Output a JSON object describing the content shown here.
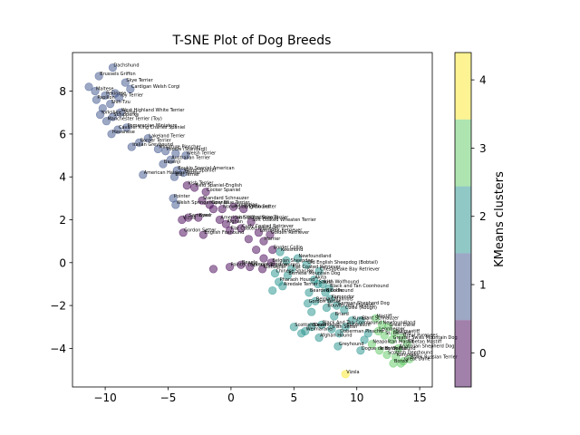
{
  "chart_data": {
    "type": "scatter",
    "title": "T-SNE Plot of Dog Breeds",
    "xlabel": "",
    "ylabel": "",
    "xlim": [
      -12.6,
      16.0
    ],
    "ylim": [
      -5.8,
      9.8
    ],
    "xticks": [
      -10,
      -5,
      0,
      5,
      10,
      15
    ],
    "yticks": [
      -4,
      -2,
      0,
      2,
      4,
      6,
      8
    ],
    "grid": false,
    "colorbar": {
      "label": "KMeans clusters",
      "ticks": [
        0,
        1,
        2,
        3,
        4
      ],
      "range": [
        -0.5,
        4.4
      ],
      "colors": [
        "#440154",
        "#3b528b",
        "#21918c",
        "#5ec962",
        "#fde725"
      ]
    },
    "points": [
      {
        "x": -9.4,
        "y": 9.1,
        "cluster": 1,
        "label": "Dachshund"
      },
      {
        "x": -10.5,
        "y": 8.7,
        "cluster": 1,
        "label": "Brussels Griffon"
      },
      {
        "x": -8.4,
        "y": 8.4,
        "cluster": 1,
        "label": "Skye Terrier"
      },
      {
        "x": -8.0,
        "y": 8.1,
        "cluster": 1,
        "label": "Cardigan Welsh Corgi"
      },
      {
        "x": -11.3,
        "y": 8.2,
        "cluster": 1,
        "label": ""
      },
      {
        "x": -10.8,
        "y": 8.0,
        "cluster": 1,
        "label": "Maltese"
      },
      {
        "x": -10.0,
        "y": 7.8,
        "cluster": 1,
        "label": "Pekinese"
      },
      {
        "x": -9.2,
        "y": 7.9,
        "cluster": 1,
        "label": ""
      },
      {
        "x": -8.9,
        "y": 7.7,
        "cluster": 1,
        "label": "Toy Terrier"
      },
      {
        "x": -10.7,
        "y": 7.6,
        "cluster": 1,
        "label": "Papillon"
      },
      {
        "x": -9.6,
        "y": 7.4,
        "cluster": 1,
        "label": "Shih-Tzu"
      },
      {
        "x": -10.2,
        "y": 7.2,
        "cluster": 1,
        "label": ""
      },
      {
        "x": -8.8,
        "y": 7.0,
        "cluster": 1,
        "label": "West Highland White Terrier"
      },
      {
        "x": -10.4,
        "y": 6.9,
        "cluster": 1,
        "label": "Yorkshire Terrier"
      },
      {
        "x": -9.4,
        "y": 6.8,
        "cluster": 1,
        "label": "Schipperke"
      },
      {
        "x": -9.9,
        "y": 6.6,
        "cluster": 1,
        "label": "Manchester Terrier (Toy)"
      },
      {
        "x": -8.3,
        "y": 6.3,
        "cluster": 1,
        "label": "Pomeranian Miniature"
      },
      {
        "x": -9.0,
        "y": 6.2,
        "cluster": 1,
        "label": "Cavalier King Charles Spaniel"
      },
      {
        "x": -9.5,
        "y": 6.0,
        "cluster": 1,
        "label": "Havanese"
      },
      {
        "x": -6.6,
        "y": 5.8,
        "cluster": 1,
        "label": "Lakeland Terrier"
      },
      {
        "x": -7.3,
        "y": 5.6,
        "cluster": 1,
        "label": "Border Terrier"
      },
      {
        "x": -7.9,
        "y": 5.4,
        "cluster": 1,
        "label": "Italian Greyhound"
      },
      {
        "x": -5.8,
        "y": 5.3,
        "cluster": 1,
        "label": "Miniature Pinscher"
      },
      {
        "x": -5.2,
        "y": 5.2,
        "cluster": 1,
        "label": "Poodle (Standard)"
      },
      {
        "x": -4.4,
        "y": 5.1,
        "cluster": 1,
        "label": ""
      },
      {
        "x": -3.6,
        "y": 5.0,
        "cluster": 1,
        "label": "Welsh Terrier"
      },
      {
        "x": -4.8,
        "y": 4.8,
        "cluster": 1,
        "label": "Australian Terrier"
      },
      {
        "x": -5.4,
        "y": 4.6,
        "cluster": 1,
        "label": "Basenji"
      },
      {
        "x": -4.3,
        "y": 4.3,
        "cluster": 1,
        "label": "Boykin Spaniel-American"
      },
      {
        "x": -3.8,
        "y": 4.2,
        "cluster": 1,
        "label": "Water Spaniel"
      },
      {
        "x": -4.5,
        "y": 4.0,
        "cluster": 1,
        "label": "Bull Terrier"
      },
      {
        "x": -7.0,
        "y": 4.1,
        "cluster": 1,
        "label": "American Hairless Terrier"
      },
      {
        "x": -3.5,
        "y": 3.6,
        "cluster": 0,
        "label": "Irish Terrier"
      },
      {
        "x": -2.9,
        "y": 3.5,
        "cluster": 0,
        "label": "Field Spaniel-English"
      },
      {
        "x": -2.0,
        "y": 3.3,
        "cluster": 0,
        "label": "Cocker Spaniel"
      },
      {
        "x": -4.6,
        "y": 3.0,
        "cluster": 1,
        "label": "Pointer"
      },
      {
        "x": -4.4,
        "y": 2.7,
        "cluster": 1,
        "label": "Welsh Springer Spaniel"
      },
      {
        "x": -2.3,
        "y": 2.9,
        "cluster": 0,
        "label": "Standard Schnauzer"
      },
      {
        "x": -1.7,
        "y": 2.7,
        "cluster": 0,
        "label": "Kerry Blue Terrier"
      },
      {
        "x": -1.4,
        "y": 2.5,
        "cluster": 0,
        "label": ""
      },
      {
        "x": -0.7,
        "y": 2.5,
        "cluster": 0,
        "label": "Norwegian Elkhound"
      },
      {
        "x": 0.2,
        "y": 2.6,
        "cluster": 0,
        "label": "Dalmatian"
      },
      {
        "x": 1.0,
        "y": 2.5,
        "cluster": 0,
        "label": "English Setter"
      },
      {
        "x": -3.4,
        "y": 2.1,
        "cluster": 0,
        "label": "Samoyed"
      },
      {
        "x": -3.9,
        "y": 2.0,
        "cluster": 0,
        "label": "Vizsla"
      },
      {
        "x": -2.6,
        "y": 2.1,
        "cluster": 0,
        "label": "Boxer"
      },
      {
        "x": -0.9,
        "y": 2.0,
        "cluster": 0,
        "label": "American Staffordshire Terrier"
      },
      {
        "x": -0.4,
        "y": 1.8,
        "cluster": 0,
        "label": "Afghan"
      },
      {
        "x": 0.3,
        "y": 2.0,
        "cluster": 0,
        "label": "Irish Water Spaniel"
      },
      {
        "x": 1.6,
        "y": 1.9,
        "cluster": 0,
        "label": "Soft Coated Wheaten Terrier"
      },
      {
        "x": 0.8,
        "y": 1.6,
        "cluster": 0,
        "label": "Curly Coated Retriever"
      },
      {
        "x": -0.1,
        "y": 1.5,
        "cluster": 0,
        "label": "Flat Coated Retriever"
      },
      {
        "x": 2.2,
        "y": 1.4,
        "cluster": 0,
        "label": "Labrador Retriever"
      },
      {
        "x": -3.8,
        "y": 1.4,
        "cluster": 0,
        "label": "Gordon Setter"
      },
      {
        "x": -2.2,
        "y": 1.3,
        "cluster": 0,
        "label": "English Foxhound"
      },
      {
        "x": 3.1,
        "y": 1.3,
        "cluster": 0,
        "label": "Golden Retriever"
      },
      {
        "x": 1.4,
        "y": 1.1,
        "cluster": 0,
        "label": ""
      },
      {
        "x": 2.6,
        "y": 1.0,
        "cluster": 0,
        "label": "Harrier"
      },
      {
        "x": 2.0,
        "y": 0.6,
        "cluster": 0,
        "label": ""
      },
      {
        "x": 3.3,
        "y": 0.6,
        "cluster": 0,
        "label": "Border Collie"
      },
      {
        "x": 3.9,
        "y": 0.5,
        "cluster": 2,
        "label": "Keeshond"
      },
      {
        "x": 2.6,
        "y": 0.2,
        "cluster": 0,
        "label": ""
      },
      {
        "x": 3.2,
        "y": 0.0,
        "cluster": 0,
        "label": "Belgian Sheepdog"
      },
      {
        "x": 4.4,
        "y": 0.1,
        "cluster": 2,
        "label": ""
      },
      {
        "x": 5.3,
        "y": 0.2,
        "cluster": 2,
        "label": "Newfoundland"
      },
      {
        "x": 6.0,
        "y": -0.1,
        "cluster": 2,
        "label": "Old English Sheepdog (Bobtail)"
      },
      {
        "x": 4.8,
        "y": -0.3,
        "cluster": 2,
        "label": "Flat Coated Retriever"
      },
      {
        "x": 7.0,
        "y": -0.4,
        "cluster": 2,
        "label": "Chesapeake Bay Retriever"
      },
      {
        "x": 0.8,
        "y": -0.1,
        "cluster": 0,
        "label": "Beagle"
      },
      {
        "x": 1.5,
        "y": -0.2,
        "cluster": 0,
        "label": "Spinone Italiano"
      },
      {
        "x": -0.1,
        "y": -0.2,
        "cluster": 0,
        "label": "Pointer (German Short-Haired)"
      },
      {
        "x": -1.4,
        "y": -0.3,
        "cluster": 0,
        "label": ""
      },
      {
        "x": 2.5,
        "y": -0.3,
        "cluster": 0,
        "label": "Rottweiler"
      },
      {
        "x": 3.5,
        "y": -0.5,
        "cluster": 2,
        "label": "Chinese Shar-Pei"
      },
      {
        "x": 4.5,
        "y": -0.6,
        "cluster": 2,
        "label": "Bernese Mountain Dog"
      },
      {
        "x": 6.6,
        "y": -0.8,
        "cluster": 2,
        "label": "Akita"
      },
      {
        "x": 3.8,
        "y": -0.9,
        "cluster": 2,
        "label": "Pharaoh Hound"
      },
      {
        "x": 4.1,
        "y": -1.1,
        "cluster": 2,
        "label": "Airedale Terrier"
      },
      {
        "x": 6.9,
        "y": -1.0,
        "cluster": 2,
        "label": "Saluki"
      },
      {
        "x": 7.3,
        "y": -1.0,
        "cluster": 2,
        "label": "Irish Wolfhound"
      },
      {
        "x": 7.8,
        "y": -1.2,
        "cluster": 2,
        "label": "Black and Tan Coonhound"
      },
      {
        "x": 3.3,
        "y": -1.3,
        "cluster": 2,
        "label": ""
      },
      {
        "x": 6.2,
        "y": -1.4,
        "cluster": 2,
        "label": "Bearded Collie"
      },
      {
        "x": 7.5,
        "y": -1.4,
        "cluster": 2,
        "label": "Bloodhound"
      },
      {
        "x": 7.9,
        "y": -1.7,
        "cluster": 2,
        "label": "Komondor"
      },
      {
        "x": 6.7,
        "y": -1.8,
        "cluster": 2,
        "label": "Belgian Malinois"
      },
      {
        "x": 6.1,
        "y": -1.9,
        "cluster": 2,
        "label": "Gordon Setter"
      },
      {
        "x": 8.4,
        "y": -2.0,
        "cluster": 2,
        "label": "German Shepherd Dog"
      },
      {
        "x": 7.6,
        "y": -2.1,
        "cluster": 2,
        "label": "Bouvier des Flandres"
      },
      {
        "x": 9.0,
        "y": -2.2,
        "cluster": 2,
        "label": "Collie (Rough)"
      },
      {
        "x": 6.4,
        "y": -2.3,
        "cluster": 2,
        "label": ""
      },
      {
        "x": 8.2,
        "y": -2.5,
        "cluster": 2,
        "label": "Briard"
      },
      {
        "x": 9.6,
        "y": -2.7,
        "cluster": 2,
        "label": "Kuvasz"
      },
      {
        "x": 10.3,
        "y": -2.7,
        "cluster": 2,
        "label": "Giant Schnauzer"
      },
      {
        "x": 7.2,
        "y": -2.9,
        "cluster": 2,
        "label": "Black And Tan Coonhound"
      },
      {
        "x": 6.4,
        "y": -3.0,
        "cluster": 2,
        "label": "Borzoi"
      },
      {
        "x": 5.0,
        "y": -3.0,
        "cluster": 2,
        "label": "Scottish Deerhound"
      },
      {
        "x": 8.0,
        "y": -3.1,
        "cluster": 2,
        "label": "Irish Setter"
      },
      {
        "x": 9.1,
        "y": -3.0,
        "cluster": 2,
        "label": "Bullmastiff"
      },
      {
        "x": 5.9,
        "y": -3.2,
        "cluster": 2,
        "label": "Weimaraner"
      },
      {
        "x": 8.6,
        "y": -3.3,
        "cluster": 2,
        "label": "Doberman Pinscher"
      },
      {
        "x": 5.6,
        "y": -3.3,
        "cluster": 2,
        "label": ""
      },
      {
        "x": 7.0,
        "y": -3.5,
        "cluster": 2,
        "label": "Afghan Hound"
      },
      {
        "x": 11.5,
        "y": -2.6,
        "cluster": 3,
        "label": "Mastiff"
      },
      {
        "x": 12.0,
        "y": -2.9,
        "cluster": 3,
        "label": "Newfoundland"
      },
      {
        "x": 12.5,
        "y": -3.0,
        "cluster": 3,
        "label": "Great Dane"
      },
      {
        "x": 11.7,
        "y": -3.2,
        "cluster": 3,
        "label": "Leonberger"
      },
      {
        "x": 13.0,
        "y": -3.3,
        "cluster": 3,
        "label": "Bullmastiff"
      },
      {
        "x": 12.2,
        "y": -3.4,
        "cluster": 3,
        "label": "St. Bernard"
      },
      {
        "x": 13.6,
        "y": -3.5,
        "cluster": 3,
        "label": "Great Pyrenees"
      },
      {
        "x": 12.8,
        "y": -3.6,
        "cluster": 3,
        "label": "Greater Swiss Mountain Dog"
      },
      {
        "x": 14.0,
        "y": -3.8,
        "cluster": 3,
        "label": "Tibetan Mastiff"
      },
      {
        "x": 10.6,
        "y": -3.6,
        "cluster": 2,
        "label": ""
      },
      {
        "x": 10.9,
        "y": -3.3,
        "cluster": 2,
        "label": ""
      },
      {
        "x": 11.2,
        "y": -3.8,
        "cluster": 3,
        "label": "Neapolitan Mastiff"
      },
      {
        "x": 13.3,
        "y": -4.0,
        "cluster": 3,
        "label": "Anatolian Shepherd Dog"
      },
      {
        "x": 11.8,
        "y": -4.1,
        "cluster": 3,
        "label": "Irish Wolfhound"
      },
      {
        "x": 12.4,
        "y": -4.3,
        "cluster": 3,
        "label": "Scottish Deerhound"
      },
      {
        "x": 13.1,
        "y": -4.4,
        "cluster": 3,
        "label": "Komondor"
      },
      {
        "x": 14.2,
        "y": -4.5,
        "cluster": 3,
        "label": "Black Russian Terrier"
      },
      {
        "x": 13.7,
        "y": -4.6,
        "cluster": 3,
        "label": "Great Dane"
      },
      {
        "x": 12.9,
        "y": -4.7,
        "cluster": 3,
        "label": "Borzoi"
      },
      {
        "x": 13.5,
        "y": -4.7,
        "cluster": 3,
        "label": ""
      },
      {
        "x": 10.3,
        "y": -4.1,
        "cluster": 2,
        "label": "Dogue de Bordeaux"
      },
      {
        "x": 8.5,
        "y": -3.9,
        "cluster": 2,
        "label": "Greyhound"
      },
      {
        "x": 9.1,
        "y": -5.2,
        "cluster": 4,
        "label": "Vizsla"
      }
    ]
  }
}
